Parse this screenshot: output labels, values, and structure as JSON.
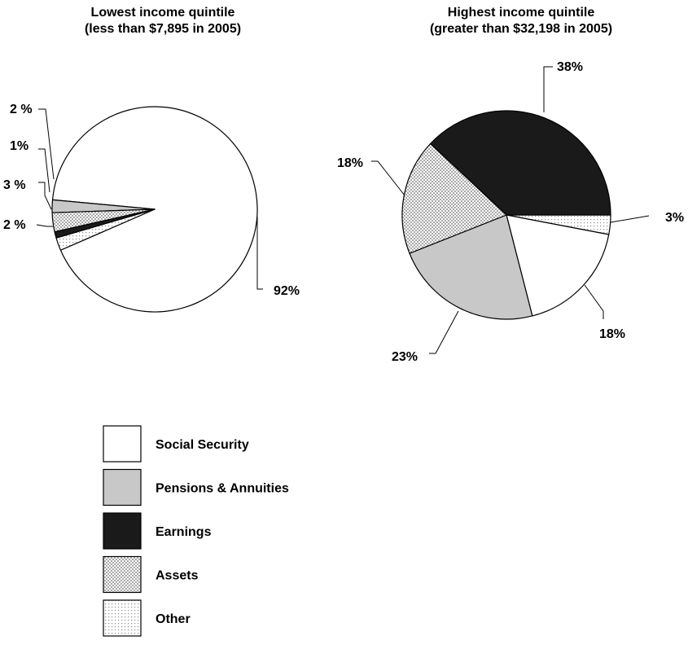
{
  "chart_data": [
    {
      "type": "pie",
      "title_line1": "Lowest income quintile",
      "title_line2": "(less than $7,895 in 2005)",
      "slices": [
        {
          "category": "Social Security",
          "value": 92,
          "label": "92%"
        },
        {
          "category": "Pensions & Annuities",
          "value": 2,
          "label": "2 %"
        },
        {
          "category": "Assets",
          "value": 3,
          "label": "3 %"
        },
        {
          "category": "Earnings",
          "value": 1,
          "label": "1%"
        },
        {
          "category": "Other",
          "value": 2,
          "label": "2 %"
        }
      ]
    },
    {
      "type": "pie",
      "title_line1": "Highest income quintile",
      "title_line2": "(greater than $32,198 in 2005)",
      "slices": [
        {
          "category": "Other",
          "value": 3,
          "label": "3%"
        },
        {
          "category": "Social Security",
          "value": 18,
          "label": "18%"
        },
        {
          "category": "Pensions & Annuities",
          "value": 23,
          "label": "23%"
        },
        {
          "category": "Assets",
          "value": 18,
          "label": "18%"
        },
        {
          "category": "Earnings",
          "value": 38,
          "label": "38%"
        }
      ]
    }
  ],
  "legend": [
    {
      "category": "Social Security",
      "label": "Social Security",
      "fill": "#ffffff"
    },
    {
      "category": "Pensions & Annuities",
      "label": "Pensions & Annuities",
      "fill": "#c8c8c8"
    },
    {
      "category": "Earnings",
      "label": "Earnings",
      "fill": "#1a1a1a"
    },
    {
      "category": "Assets",
      "label": "Assets",
      "fill": "pattern-checker"
    },
    {
      "category": "Other",
      "label": "Other",
      "fill": "pattern-dots"
    }
  ]
}
